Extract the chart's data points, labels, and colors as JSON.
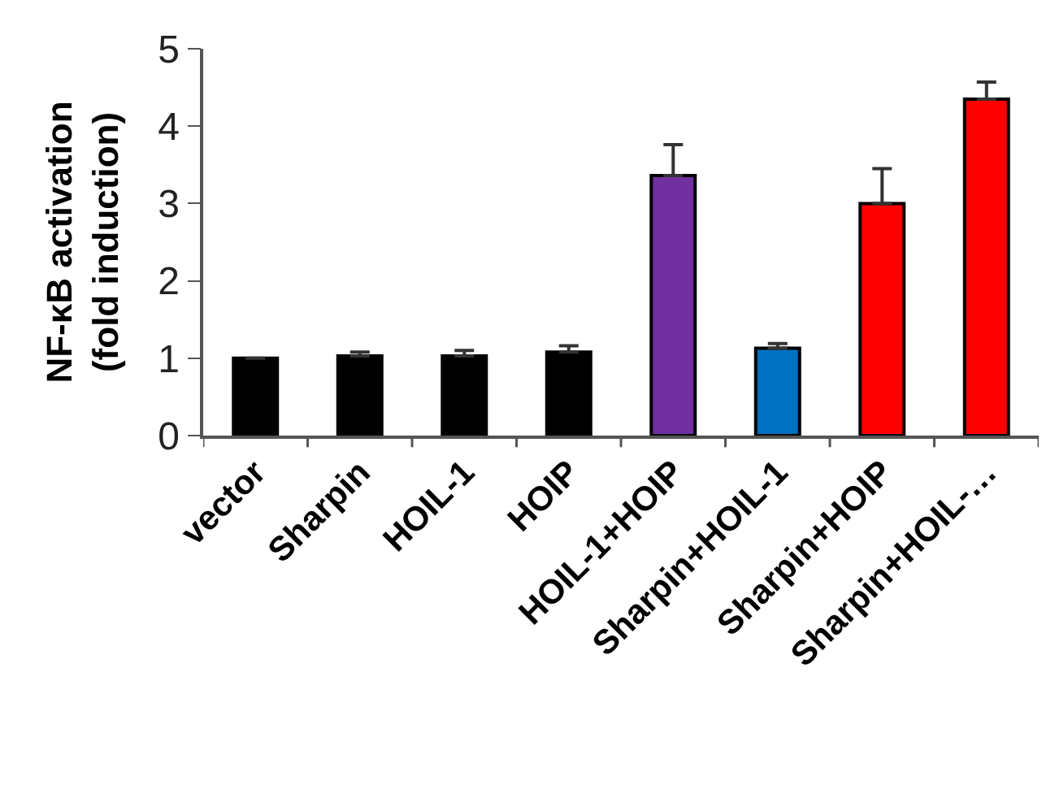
{
  "chart_data": {
    "type": "bar",
    "ylabel": "NF-κB activation\n(fold induction)",
    "categories": [
      "vector",
      "Sharpin",
      "HOIL-1",
      "HOIP",
      "HOIL-1+HOIP",
      "Sharpin+HOIL-1",
      "Sharpin+HOIP",
      "Sharpin+HOIL-…"
    ],
    "values": [
      1.0,
      1.03,
      1.03,
      1.08,
      3.36,
      1.13,
      3.0,
      4.35
    ],
    "colors": [
      "#000000",
      "#000000",
      "#000000",
      "#000000",
      "#7030a0",
      "#0070c0",
      "#ff0000",
      "#ff0000"
    ],
    "errors": [
      null,
      [
        1.03,
        1.08
      ],
      [
        1.03,
        1.1
      ],
      [
        1.08,
        1.16
      ],
      [
        3.36,
        3.76
      ],
      [
        1.13,
        1.19
      ],
      [
        3.0,
        3.45
      ],
      [
        4.35,
        4.57
      ]
    ],
    "ylim": [
      0,
      5
    ],
    "yticks": [
      0,
      1,
      2,
      3,
      4,
      5
    ]
  }
}
